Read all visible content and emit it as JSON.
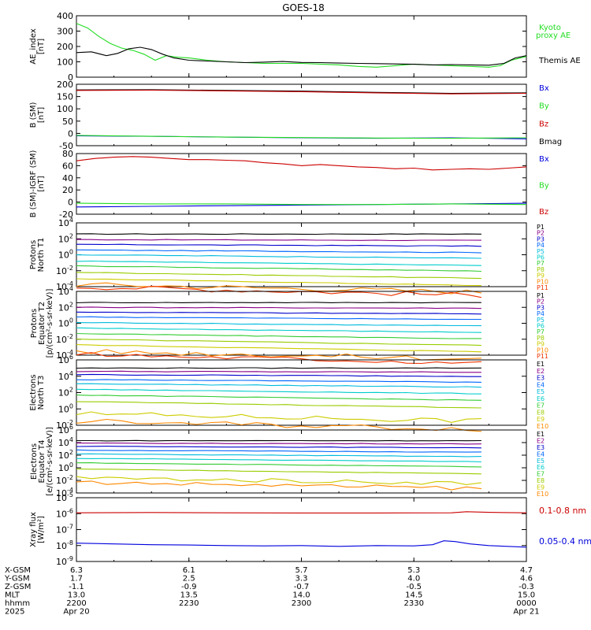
{
  "title": "GOES-18",
  "colors": {
    "black": "#000000",
    "blue": "#0000dd",
    "green": "#22dd22",
    "red": "#cc0000",
    "plevels": [
      "#000000",
      "#880088",
      "#0000cc",
      "#0066ff",
      "#00bbdd",
      "#00cccc",
      "#33cc33",
      "#99cc00",
      "#cccc00",
      "#ff8800",
      "#ee3300",
      "#cc0000"
    ]
  },
  "ticks": {
    "x_mins": [
      0,
      30,
      60,
      90,
      120
    ],
    "x_labels": {
      "xgsm": [
        "6.3",
        "6.1",
        "5.7",
        "5.3",
        "4.7"
      ],
      "ygsm": [
        "1.7",
        "2.5",
        "3.3",
        "4.0",
        "4.6"
      ],
      "zgsm": [
        "-1.1",
        "-0.9",
        "-0.7",
        "-0.5",
        "-0.3"
      ],
      "mlt": [
        "13.0",
        "13.5",
        "14.0",
        "14.5",
        "15.0"
      ],
      "hhmm": [
        "2200",
        "2230",
        "2300",
        "2330",
        "0000"
      ],
      "date": [
        "Apr 20",
        "",
        "",
        "",
        "Apr 21"
      ]
    },
    "row_names": [
      "X-GSM",
      "Y-GSM",
      "Z-GSM",
      "MLT",
      "hhmm",
      "2025"
    ]
  },
  "chart_data": [
    {
      "type": "line",
      "panel": "ae",
      "ylabel": "AE_index\n[nT]",
      "ylim": [
        0,
        400
      ],
      "yticks": [
        "400",
        "300",
        "200",
        "100",
        "0"
      ],
      "legend": [
        {
          "text": "Kyoto",
          "color": "green"
        },
        {
          "text": "proxy AE",
          "color": "green"
        },
        {
          "text": "Themis AE",
          "color": "black"
        }
      ],
      "series": [
        {
          "name": "Kyoto proxy AE",
          "color": "green",
          "x": [
            0,
            3,
            6,
            9,
            12,
            15,
            18,
            21,
            24,
            27,
            30,
            35,
            40,
            45,
            50,
            55,
            60,
            65,
            70,
            75,
            80,
            85,
            90,
            95,
            100,
            105,
            110,
            113,
            116,
            120
          ],
          "y": [
            350,
            320,
            265,
            220,
            190,
            175,
            150,
            110,
            140,
            130,
            125,
            110,
            100,
            95,
            90,
            90,
            90,
            85,
            80,
            70,
            65,
            75,
            85,
            80,
            75,
            70,
            65,
            75,
            110,
            135
          ]
        },
        {
          "name": "Themis AE",
          "color": "black",
          "x": [
            0,
            4,
            8,
            11,
            14,
            17,
            20,
            23,
            26,
            30,
            35,
            40,
            45,
            50,
            55,
            60,
            65,
            70,
            75,
            80,
            85,
            90,
            95,
            100,
            105,
            110,
            114,
            117,
            120
          ],
          "y": [
            160,
            165,
            140,
            155,
            185,
            195,
            180,
            150,
            125,
            110,
            105,
            100,
            95,
            98,
            102,
            96,
            95,
            92,
            90,
            88,
            86,
            84,
            80,
            82,
            80,
            78,
            90,
            125,
            140
          ]
        }
      ]
    },
    {
      "type": "line",
      "panel": "bsm",
      "ylabel": "B (SM)\n[nT]",
      "ylim": [
        -50,
        200
      ],
      "yticks": [
        "200",
        "150",
        "100",
        "50",
        "0",
        "-50"
      ],
      "legend": [
        {
          "text": "Bx",
          "color": "blue"
        },
        {
          "text": "By",
          "color": "green"
        },
        {
          "text": "Bz",
          "color": "red"
        },
        {
          "text": "Bmag",
          "color": "black"
        }
      ],
      "series": [
        {
          "name": "Bmag",
          "color": "black",
          "x": [
            0,
            20,
            40,
            60,
            80,
            100,
            120
          ],
          "y": [
            177,
            178,
            175,
            172,
            167,
            163,
            165
          ]
        },
        {
          "name": "Bz",
          "color": "red",
          "x": [
            0,
            20,
            40,
            60,
            80,
            100,
            120
          ],
          "y": [
            175,
            176,
            173,
            170,
            165,
            161,
            163
          ]
        },
        {
          "name": "Bx",
          "color": "blue",
          "x": [
            0,
            20,
            40,
            60,
            80,
            100,
            120
          ],
          "y": [
            -10,
            -12,
            -15,
            -18,
            -20,
            -18,
            -22
          ]
        },
        {
          "name": "By",
          "color": "green",
          "x": [
            0,
            20,
            40,
            60,
            80,
            100,
            120
          ],
          "y": [
            -8,
            -12,
            -15,
            -17,
            -19,
            -20,
            -18
          ]
        }
      ]
    },
    {
      "type": "line",
      "panel": "bigrf",
      "ylabel": "B (SM)-IGRF (SM)\n[nT]",
      "ylim": [
        -20,
        80
      ],
      "yticks": [
        "80",
        "60",
        "40",
        "20",
        "0",
        "-20"
      ],
      "legend": [
        {
          "text": "Bx",
          "color": "blue"
        },
        {
          "text": "By",
          "color": "green"
        },
        {
          "text": "Bz",
          "color": "red"
        }
      ],
      "series": [
        {
          "name": "Bz",
          "color": "red",
          "x": [
            0,
            5,
            10,
            15,
            20,
            25,
            30,
            35,
            40,
            45,
            50,
            55,
            60,
            65,
            70,
            75,
            80,
            85,
            90,
            95,
            100,
            105,
            110,
            115,
            120
          ],
          "y": [
            68,
            72,
            74,
            75,
            74,
            72,
            70,
            70,
            69,
            68,
            65,
            63,
            60,
            62,
            60,
            58,
            57,
            55,
            56,
            53,
            54,
            55,
            54,
            56,
            58
          ]
        },
        {
          "name": "Bx",
          "color": "blue",
          "x": [
            0,
            20,
            40,
            60,
            80,
            100,
            120
          ],
          "y": [
            -8,
            -7,
            -6,
            -5,
            -4,
            -3,
            -2
          ]
        },
        {
          "name": "By",
          "color": "green",
          "x": [
            0,
            20,
            40,
            60,
            80,
            100,
            120
          ],
          "y": [
            -2,
            -3,
            -3,
            -4,
            -4,
            -3,
            -4
          ]
        }
      ]
    }
  ],
  "log_panels": [
    {
      "panel": "p1",
      "ylabel": "Protons\nNorth T1",
      "exp_min": -4,
      "exp_max": 4,
      "ytick_exps": [
        4,
        2,
        0,
        -2,
        -4
      ],
      "labels": [
        "P1",
        "P2",
        "P3",
        "P4",
        "P5",
        "P6",
        "P7",
        "P8",
        "P9",
        "P10",
        "P11"
      ],
      "levels": [
        2.6,
        1.9,
        1.3,
        0.6,
        0.0,
        -0.8,
        -1.4,
        -2.2,
        -3.0,
        -3.7,
        -4.0
      ]
    },
    {
      "panel": "p2",
      "ylabel": "Protons\nEquator T2\n[p/(cm²-s-sr-keV)]",
      "exp_min": -4,
      "exp_max": 4,
      "ytick_exps": [
        4,
        2,
        0,
        -2,
        -4
      ],
      "labels": [
        "P1",
        "P2",
        "P3",
        "P4",
        "P5",
        "P6",
        "P7",
        "P8",
        "P9",
        "P10",
        "P11"
      ],
      "levels": [
        2.6,
        2.0,
        1.4,
        0.8,
        0.1,
        -0.6,
        -1.3,
        -2.0,
        -2.7,
        -3.5,
        -3.9
      ]
    },
    {
      "panel": "e1",
      "ylabel": "Electrons\nNorth T3",
      "exp_min": -2,
      "exp_max": 6,
      "ytick_exps": [
        6,
        4,
        2,
        0,
        -2
      ],
      "labels": [
        "E1",
        "E2",
        "E3",
        "E4",
        "E5",
        "E6",
        "E7",
        "E8",
        "E9",
        "E10"
      ],
      "levels": [
        5.0,
        4.6,
        4.2,
        3.6,
        3.1,
        2.4,
        1.7,
        0.9,
        -0.6,
        -1.5
      ]
    },
    {
      "panel": "e2",
      "ylabel": "Electrons\nEquator T4\n[e/(cm²-s-sr-keV)]",
      "exp_min": -4,
      "exp_max": 6,
      "ytick_exps": [
        6,
        4,
        2,
        0,
        -2,
        -4
      ],
      "labels": [
        "E1",
        "E2",
        "E3",
        "E4",
        "E5",
        "E6",
        "E7",
        "E8",
        "E9",
        "E10"
      ],
      "levels": [
        4.3,
        3.9,
        3.4,
        2.8,
        2.2,
        1.5,
        0.8,
        -0.2,
        -1.6,
        -2.3
      ]
    }
  ],
  "xray": {
    "panel": "xr",
    "ylabel": "Xray flux\n[W/m²]",
    "exp_min": -9,
    "exp_max": -5,
    "ytick_exps": [
      -5,
      -6,
      -7,
      -8,
      -9
    ],
    "legend": [
      {
        "text": "0.1-0.8 nm",
        "color": "red"
      },
      {
        "text": "0.05-0.4 nm",
        "color": "blue"
      }
    ],
    "long": {
      "x": [
        0,
        20,
        40,
        60,
        80,
        100,
        104,
        110,
        120
      ],
      "y": [
        -5.95,
        -5.93,
        -5.95,
        -5.96,
        -5.96,
        -5.95,
        -5.88,
        -5.92,
        -5.95
      ]
    },
    "short": {
      "x": [
        0,
        10,
        20,
        30,
        40,
        50,
        60,
        70,
        80,
        90,
        95,
        98,
        101,
        105,
        110,
        115,
        120
      ],
      "y": [
        -7.85,
        -7.9,
        -7.95,
        -7.97,
        -8.0,
        -8.02,
        -8.0,
        -8.05,
        -8.0,
        -8.02,
        -7.95,
        -7.7,
        -7.75,
        -7.9,
        -8.0,
        -8.05,
        -8.1
      ]
    }
  }
}
